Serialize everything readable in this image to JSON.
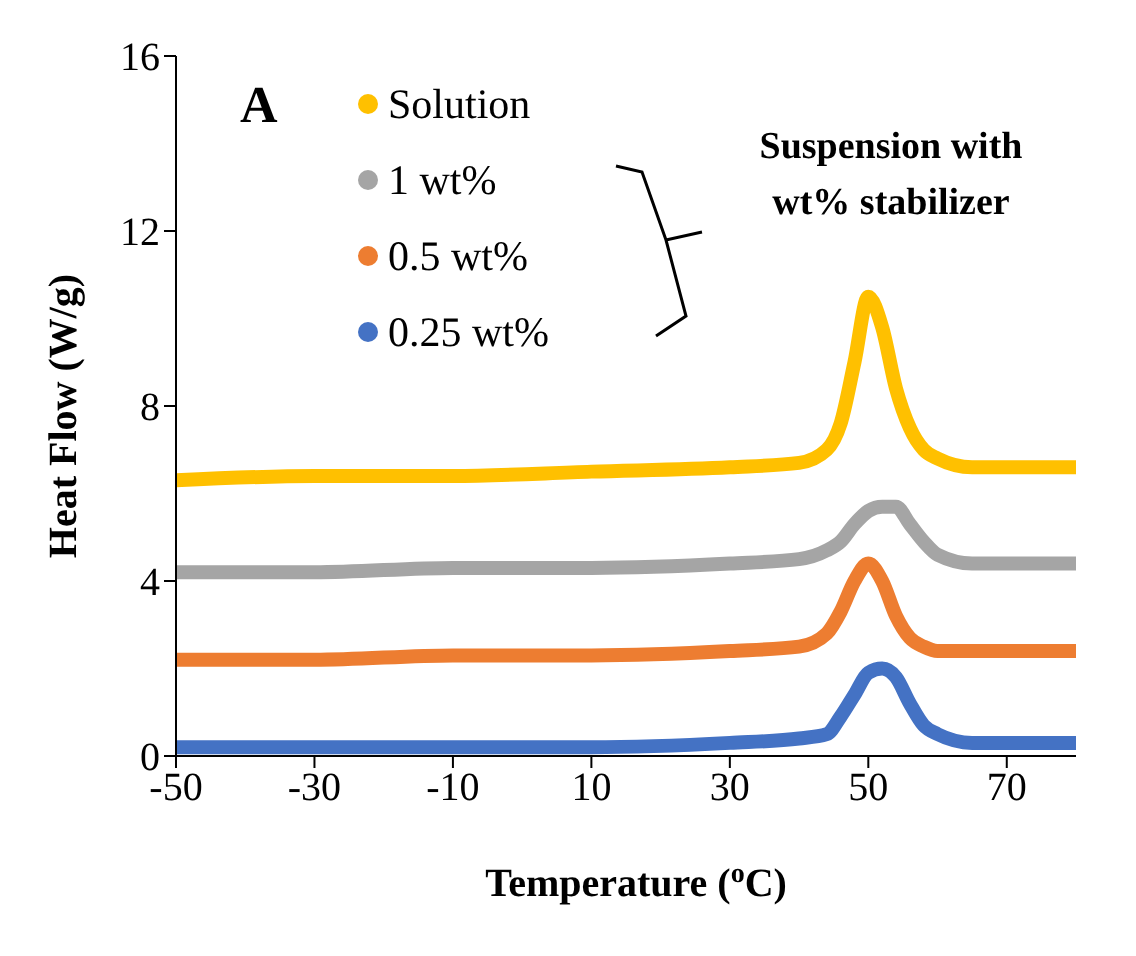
{
  "chart_data": {
    "type": "line",
    "xlabel": "Temperature ($^{o}$C)",
    "ylabel": "Heat Flow (W/g)",
    "x": [
      -50,
      -30,
      -10,
      10,
      30,
      40,
      44,
      46,
      48,
      50,
      52,
      54,
      56,
      58,
      60,
      65,
      70,
      80
    ],
    "series": [
      {
        "name": "Solution",
        "color": "#ffc000",
        "values": [
          6.3,
          6.4,
          6.4,
          6.5,
          6.6,
          6.7,
          7.0,
          7.6,
          9.0,
          10.5,
          9.8,
          8.4,
          7.5,
          7.0,
          6.8,
          6.6,
          6.6,
          6.6
        ]
      },
      {
        "name": "1 wt%",
        "color": "#a5a5a5",
        "values": [
          4.2,
          4.2,
          4.3,
          4.3,
          4.4,
          4.5,
          4.7,
          4.9,
          5.3,
          5.6,
          5.7,
          5.7,
          5.3,
          4.9,
          4.6,
          4.4,
          4.4,
          4.4
        ]
      },
      {
        "name": "0.5 wt%",
        "color": "#ed7d31",
        "values": [
          2.2,
          2.2,
          2.3,
          2.3,
          2.4,
          2.5,
          2.8,
          3.3,
          4.0,
          4.4,
          4.0,
          3.2,
          2.7,
          2.5,
          2.4,
          2.4,
          2.4,
          2.4
        ]
      },
      {
        "name": "0.25 wt%",
        "color": "#4472c4",
        "values": [
          0.2,
          0.2,
          0.2,
          0.2,
          0.3,
          0.4,
          0.5,
          0.9,
          1.4,
          1.9,
          2.0,
          1.8,
          1.2,
          0.7,
          0.5,
          0.3,
          0.3,
          0.3
        ]
      }
    ],
    "xlim": [
      -50,
      80
    ],
    "xticks": [
      -50,
      -30,
      -10,
      10,
      30,
      50,
      70
    ],
    "ylim": [
      0,
      16
    ],
    "yticks": [
      0,
      4,
      8,
      12,
      16
    ],
    "grid": false,
    "legend": "top left",
    "marker": "none",
    "line_style": "solid",
    "annotations": [
      "A",
      "Suspension with wt% stabilizer"
    ]
  }
}
